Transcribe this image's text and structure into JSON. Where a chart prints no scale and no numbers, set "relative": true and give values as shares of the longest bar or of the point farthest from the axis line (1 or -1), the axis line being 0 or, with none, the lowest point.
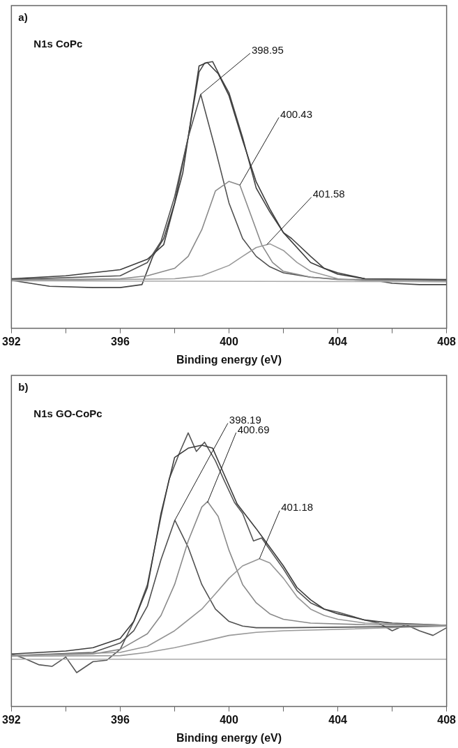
{
  "chart_data": [
    {
      "type": "line",
      "title": "a)",
      "subtitle": "N1s CoPc",
      "xlabel": "Binding energy (eV)",
      "relative": true,
      "grid": false,
      "legend": false,
      "marker": "none",
      "tick_labels": "x",
      "xlim": [
        392,
        408
      ],
      "xticks": [
        392,
        {
          "value": 394,
          "label": null
        },
        396,
        {
          "value": 398,
          "label": null
        },
        400,
        {
          "value": 402,
          "label": null
        },
        404,
        {
          "value": 406,
          "label": null
        },
        408
      ],
      "series": [
        {
          "color": "#aaaaaa",
          "x": [
            392,
            408
          ],
          "values": [
            0.178,
            0.175
          ]
        },
        {
          "color": "#999999",
          "x": [
            392,
            398,
            399,
            400,
            400.5,
            401,
            401.5,
            402,
            402.5,
            403,
            404,
            405,
            408
          ],
          "values": [
            0.178,
            0.186,
            0.197,
            0.236,
            0.27,
            0.303,
            0.317,
            0.292,
            0.247,
            0.214,
            0.186,
            0.178,
            0.175
          ]
        },
        {
          "color": "#8a8a8a",
          "x": [
            392,
            396,
            397,
            398,
            398.5,
            399,
            399.5,
            400,
            400.4,
            400.8,
            401.2,
            401.6,
            402,
            403,
            404,
            408
          ],
          "values": [
            0.181,
            0.186,
            0.197,
            0.225,
            0.27,
            0.37,
            0.515,
            0.551,
            0.537,
            0.426,
            0.314,
            0.247,
            0.214,
            0.192,
            0.183,
            0.178
          ]
        },
        {
          "color": "#505050",
          "x": [
            392,
            396,
            397,
            397.5,
            398,
            398.5,
            398.96,
            399.5,
            400,
            400.5,
            401,
            401.5,
            402,
            403,
            404,
            408
          ],
          "values": [
            0.183,
            0.197,
            0.247,
            0.326,
            0.493,
            0.716,
            0.877,
            0.671,
            0.47,
            0.337,
            0.27,
            0.231,
            0.208,
            0.192,
            0.184,
            0.181
          ]
        },
        {
          "color": "#3c3c3c",
          "x": [
            392,
            394,
            396,
            397,
            397.6,
            398.3,
            398.9,
            399.2,
            399.6,
            400,
            400.5,
            401,
            401.5,
            402,
            403,
            404,
            405,
            408
          ],
          "values": [
            0.186,
            0.197,
            0.22,
            0.259,
            0.314,
            0.582,
            0.984,
            0.997,
            0.955,
            0.872,
            0.705,
            0.549,
            0.448,
            0.359,
            0.247,
            0.203,
            0.186,
            0.183
          ]
        },
        {
          "color": "#444444",
          "x": [
            392,
            393.4,
            395,
            396,
            396.8,
            397.2,
            397.6,
            398,
            398.5,
            398.9,
            399.1,
            399.4,
            399.7,
            400,
            400.5,
            401,
            401.5,
            402,
            402.3,
            403,
            403.5,
            404,
            405,
            406,
            407,
            408
          ],
          "values": [
            0.18,
            0.158,
            0.153,
            0.153,
            0.164,
            0.27,
            0.337,
            0.47,
            0.716,
            0.961,
            0.994,
            1.0,
            0.939,
            0.883,
            0.716,
            0.526,
            0.437,
            0.359,
            0.337,
            0.27,
            0.225,
            0.208,
            0.186,
            0.169,
            0.164,
            0.164
          ]
        }
      ],
      "annotations": [
        {
          "text": "398.95",
          "x": 398.96,
          "y": 0.877
        },
        {
          "text": "400.43",
          "x": 400.4,
          "y": 0.537
        },
        {
          "text": "401.58",
          "x": 401.39,
          "y": 0.314
        }
      ]
    },
    {
      "type": "line",
      "title": "b)",
      "subtitle": "N1s GO-CoPc",
      "xlabel": "Binding energy (eV)",
      "relative": true,
      "grid": false,
      "legend": false,
      "marker": "none",
      "tick_labels": "x",
      "xlim": [
        392,
        408
      ],
      "xticks": [
        392,
        {
          "value": 394,
          "label": null
        },
        396,
        {
          "value": 398,
          "label": null
        },
        400,
        {
          "value": 402,
          "label": null
        },
        404,
        {
          "value": 406,
          "label": null
        },
        408
      ],
      "series": [
        {
          "color": "#aaaaaa",
          "x": [
            392,
            408
          ],
          "values": [
            0.173,
            0.173
          ]
        },
        {
          "color": "#999999",
          "x": [
            392,
            396,
            397,
            398,
            399,
            400,
            401,
            402,
            404,
            408
          ],
          "values": [
            0.184,
            0.186,
            0.198,
            0.215,
            0.237,
            0.26,
            0.271,
            0.277,
            0.282,
            0.294
          ]
        },
        {
          "color": "#959595",
          "x": [
            392,
            396,
            397,
            398,
            399,
            399.5,
            400,
            400.5,
            401.12,
            401.5,
            402,
            402.5,
            403,
            403.5,
            404,
            405,
            408
          ],
          "values": [
            0.186,
            0.198,
            0.22,
            0.277,
            0.356,
            0.412,
            0.469,
            0.514,
            0.54,
            0.525,
            0.469,
            0.401,
            0.356,
            0.333,
            0.319,
            0.305,
            0.297
          ]
        },
        {
          "color": "#8a8a8a",
          "x": [
            392,
            395,
            396,
            397,
            397.5,
            398,
            398.5,
            399,
            399.21,
            399.6,
            400,
            400.5,
            401,
            401.5,
            402,
            403,
            405,
            408
          ],
          "values": [
            0.186,
            0.192,
            0.209,
            0.266,
            0.333,
            0.446,
            0.605,
            0.729,
            0.749,
            0.695,
            0.571,
            0.446,
            0.379,
            0.339,
            0.319,
            0.305,
            0.299,
            0.297
          ]
        },
        {
          "color": "#505050",
          "x": [
            392,
            395,
            396,
            396.5,
            397,
            397.5,
            398.01,
            398.5,
            399,
            399.5,
            400,
            400.5,
            401,
            402,
            408
          ],
          "values": [
            0.186,
            0.198,
            0.232,
            0.277,
            0.367,
            0.537,
            0.681,
            0.582,
            0.446,
            0.356,
            0.311,
            0.294,
            0.288,
            0.288,
            0.294
          ]
        },
        {
          "color": "#3c3c3c",
          "x": [
            392,
            394,
            395,
            396,
            396.5,
            397,
            397.5,
            398,
            398.5,
            399,
            399.4,
            399.8,
            400.3,
            401,
            401.5,
            402,
            402.5,
            403,
            403.5,
            404,
            405,
            406,
            408
          ],
          "values": [
            0.192,
            0.203,
            0.215,
            0.249,
            0.311,
            0.435,
            0.706,
            0.91,
            0.944,
            0.955,
            0.944,
            0.853,
            0.74,
            0.65,
            0.582,
            0.514,
            0.435,
            0.39,
            0.356,
            0.339,
            0.316,
            0.305,
            0.297
          ]
        },
        {
          "color": "#555555",
          "x": [
            392,
            392.5,
            393,
            393.5,
            394,
            394.4,
            395,
            395.5,
            396,
            396.5,
            397,
            397.5,
            397.8,
            398.2,
            398.5,
            398.8,
            399.1,
            399.5,
            399.8,
            400.2,
            400.5,
            400.9,
            401.2,
            401.6,
            402,
            402.5,
            403,
            403.5,
            404,
            405,
            405.5,
            406,
            406.5,
            407,
            407.5,
            408
          ],
          "values": [
            0.192,
            0.175,
            0.153,
            0.147,
            0.181,
            0.124,
            0.164,
            0.169,
            0.209,
            0.311,
            0.446,
            0.695,
            0.831,
            0.932,
            1.0,
            0.932,
            0.966,
            0.898,
            0.831,
            0.746,
            0.706,
            0.605,
            0.616,
            0.559,
            0.503,
            0.424,
            0.379,
            0.356,
            0.345,
            0.316,
            0.305,
            0.277,
            0.299,
            0.277,
            0.26,
            0.288
          ]
        }
      ],
      "annotations": [
        {
          "text": "398.19",
          "x": 398.01,
          "y": 0.681
        },
        {
          "text": "400.69",
          "x": 399.21,
          "y": 0.746
        },
        {
          "text": "401.18",
          "x": 401.12,
          "y": 0.54
        }
      ]
    }
  ]
}
